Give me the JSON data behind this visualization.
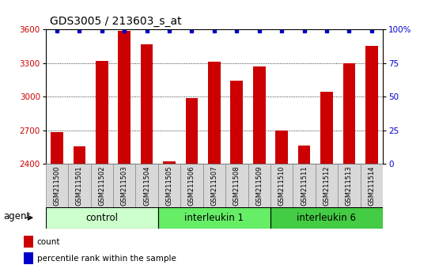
{
  "title": "GDS3005 / 213603_s_at",
  "samples": [
    "GSM211500",
    "GSM211501",
    "GSM211502",
    "GSM211503",
    "GSM211504",
    "GSM211505",
    "GSM211506",
    "GSM211507",
    "GSM211508",
    "GSM211509",
    "GSM211510",
    "GSM211511",
    "GSM211512",
    "GSM211513",
    "GSM211514"
  ],
  "counts": [
    2680,
    2555,
    3320,
    3590,
    3465,
    2420,
    2990,
    3310,
    3140,
    3270,
    2700,
    2560,
    3040,
    3300,
    3450
  ],
  "groups": [
    {
      "label": "control",
      "start": 0,
      "end": 5,
      "color": "#ccffcc"
    },
    {
      "label": "interleukin 1",
      "start": 5,
      "end": 10,
      "color": "#66ee66"
    },
    {
      "label": "interleukin 6",
      "start": 10,
      "end": 15,
      "color": "#44cc44"
    }
  ],
  "bar_color": "#cc0000",
  "dot_color": "#0000cc",
  "ymin": 2400,
  "ymax": 3600,
  "yticks": [
    2400,
    2700,
    3000,
    3300,
    3600
  ],
  "right_yticks_vals": [
    0,
    25,
    50,
    75,
    100
  ],
  "right_ytick_labels": [
    "0",
    "25",
    "50",
    "75",
    "100%"
  ],
  "tick_fontsize": 7.5,
  "label_fontsize": 8.5,
  "title_fontsize": 10,
  "bg_color": "#ffffff",
  "xticklabel_bg": "#d8d8d8",
  "agent_label": "agent"
}
